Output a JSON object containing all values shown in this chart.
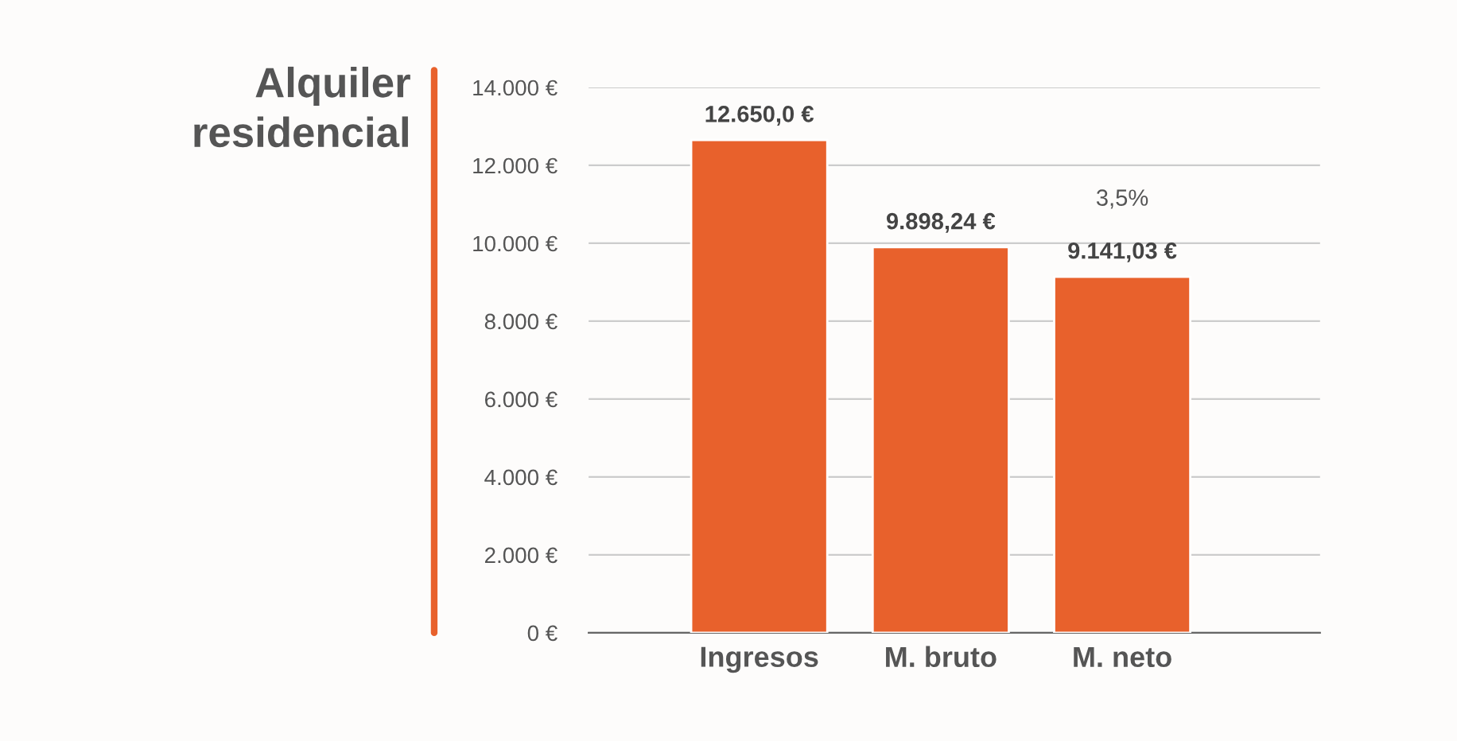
{
  "chart_data": {
    "type": "bar",
    "title": "Alquiler\nresidencial",
    "categories": [
      "Ingresos",
      "M. bruto",
      "M. neto"
    ],
    "values": [
      12650.0,
      9898.24,
      9141.03
    ],
    "value_labels": [
      "12.650,0 €",
      "9.898,24 €",
      "9.141,03 €"
    ],
    "color": "#e8612c",
    "ylim": [
      0,
      14000
    ],
    "yticks": [
      {
        "value": 0,
        "label": "0 €"
      },
      {
        "value": 2000,
        "label": "2.000 €"
      },
      {
        "value": 4000,
        "label": "4.000 €"
      },
      {
        "value": 6000,
        "label": "6.000 €"
      },
      {
        "value": 8000,
        "label": "8.000 €"
      },
      {
        "value": 10000,
        "label": "10.000 €"
      },
      {
        "value": 12000,
        "label": "12.000 €"
      },
      {
        "value": 14000,
        "label": "14.000 €"
      }
    ],
    "grid": "y",
    "annotations": [
      {
        "text": "3,5%",
        "x": "M. neto",
        "y": 9141.03
      }
    ]
  }
}
